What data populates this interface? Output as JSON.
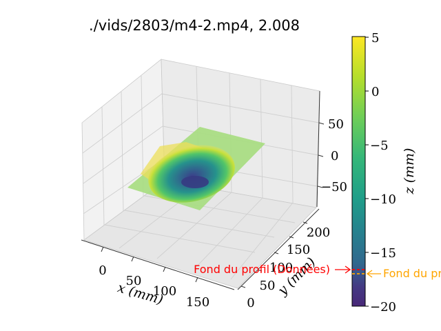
{
  "chart_data": {
    "type": "surface3d",
    "title": "./vids/2803/m4-2.mp4, 2.008",
    "x_axis": {
      "label": "x (mm)",
      "ticks": [
        "0",
        "50",
        "100",
        "150"
      ]
    },
    "y_axis": {
      "label": "y (mm)",
      "ticks": [
        "0",
        "50",
        "100",
        "150",
        "200"
      ]
    },
    "z_axis": {
      "label": "",
      "ticks": [
        "50",
        "0",
        "−50"
      ]
    },
    "colorbar": {
      "label": "z (mm)",
      "ticks": [
        "5",
        "0",
        "−5",
        "−10",
        "−15",
        "−20"
      ],
      "range": [
        -20,
        5
      ],
      "colormap": "viridis"
    },
    "surface": {
      "description_values": {
        "flat_level_z": 0,
        "min_z": -20,
        "max_z": 5
      },
      "colors": {
        "flat": "#a6dd7e",
        "rim": "#ecdf5a",
        "deep": "#3b3f8a"
      }
    },
    "annotations": [
      {
        "text": "Fond du profil (Données)",
        "color": "#ff0000",
        "z": -17.5
      },
      {
        "text": "Fond du profil",
        "color": "#ffa500",
        "z": -17.8
      }
    ]
  }
}
